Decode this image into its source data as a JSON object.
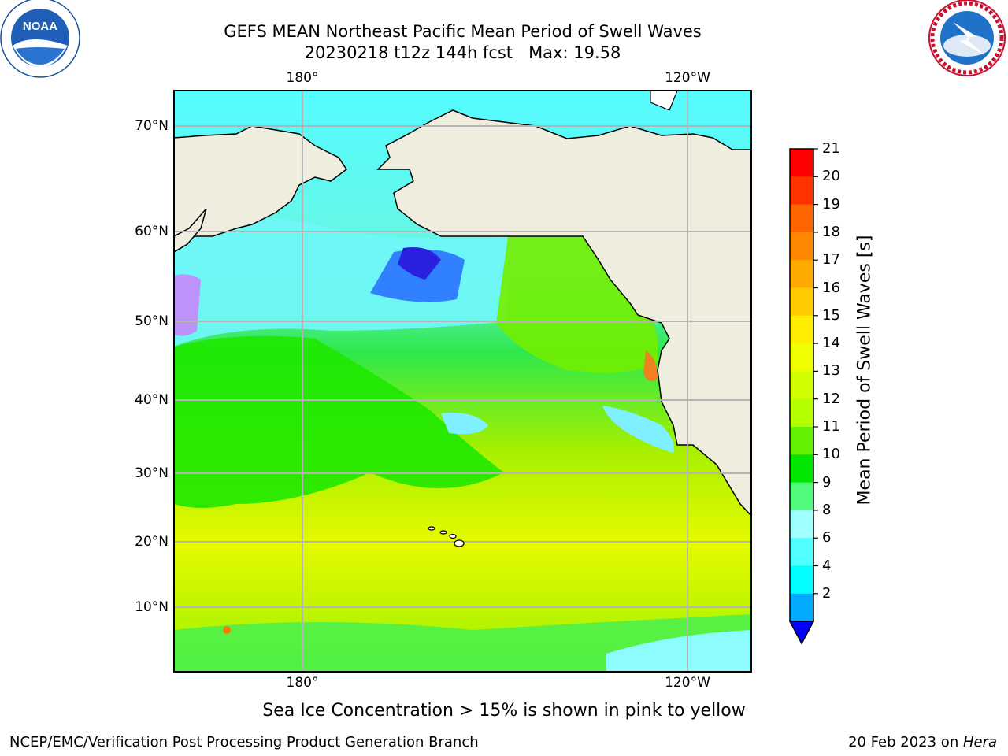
{
  "title": {
    "line1": "GEFS MEAN Northeast Pacific Mean Period of Swell Waves",
    "line2": "20230218 t12z 144h fcst   Max: 19.58"
  },
  "logos": {
    "noaa": {
      "icon": "noaa-logo",
      "text": "NOAA"
    },
    "nws": {
      "icon": "nws-logo"
    }
  },
  "map": {
    "lon_labels_top": [
      "180°",
      "120°W"
    ],
    "lon_labels_bottom": [
      "180°",
      "120°W"
    ],
    "lat_labels": [
      "70°N",
      "60°N",
      "50°N",
      "40°N",
      "30°N",
      "20°N",
      "10°N"
    ],
    "colors": {
      "land": "#efedde",
      "coast": "#000000",
      "grid": "#b4b4b4"
    }
  },
  "colorbar": {
    "label": "Mean Period of Swell Waves [s]",
    "ticks": [
      "21",
      "20",
      "19",
      "18",
      "17",
      "16",
      "15",
      "14",
      "13",
      "12",
      "11",
      "10",
      "9",
      "8",
      "6",
      "4",
      "2"
    ],
    "colors": [
      "#ff0000",
      "#ff3300",
      "#ff6600",
      "#ff8800",
      "#ffaa00",
      "#ffcc00",
      "#ffee00",
      "#f0ff00",
      "#d2ff00",
      "#b4ff00",
      "#64f000",
      "#00e600",
      "#50fa7a",
      "#a0ffff",
      "#50ffff",
      "#00ffff",
      "#00aaff",
      "#0000ff"
    ]
  },
  "caption": "Sea Ice Concentration > 15% is shown in pink to yellow",
  "footer": {
    "left": "NCEP/EMC/Verification Post Processing Product Generation Branch",
    "right_date": "20 Feb 2023 on ",
    "right_machine": "Hera"
  }
}
